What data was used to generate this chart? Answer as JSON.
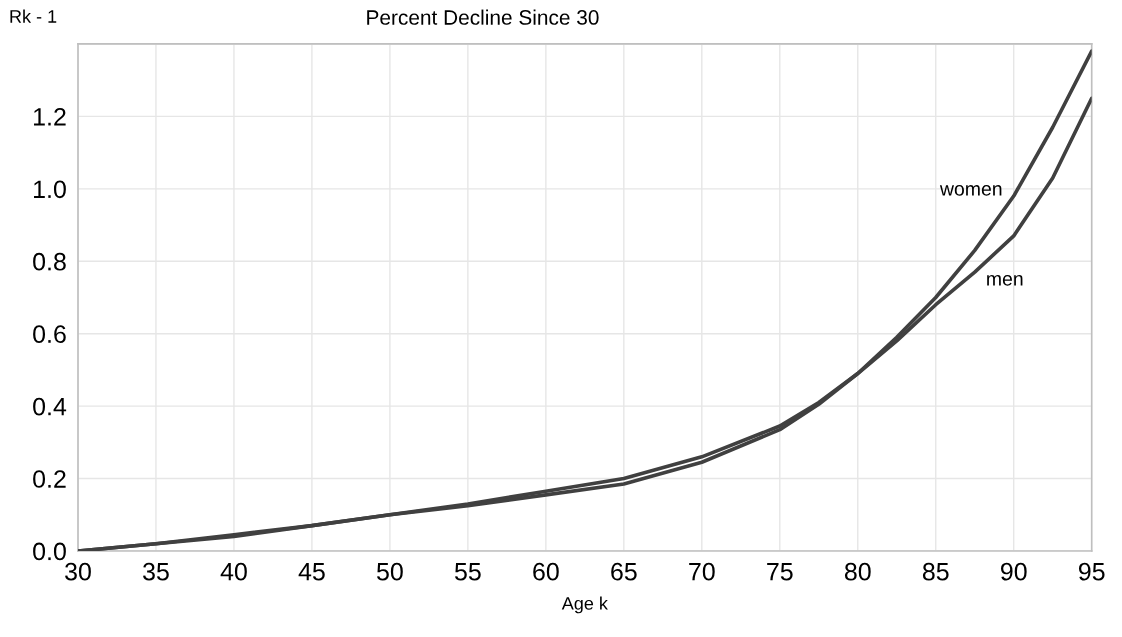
{
  "chart_data": {
    "type": "line",
    "title": "Percent Decline Since 30",
    "xlabel": "Age k",
    "ylabel": "Rk - 1",
    "x": [
      30,
      35,
      40,
      45,
      50,
      55,
      60,
      65,
      70,
      75,
      77.5,
      80,
      82.5,
      85,
      87.5,
      90,
      92.5,
      95
    ],
    "series": [
      {
        "name": "women",
        "color": "#404040",
        "values": [
          0,
          0.02,
          0.045,
          0.07,
          0.1,
          0.13,
          0.165,
          0.2,
          0.26,
          0.345,
          0.41,
          0.49,
          0.59,
          0.7,
          0.83,
          0.98,
          1.17,
          1.38
        ]
      },
      {
        "name": "men",
        "color": "#404040",
        "values": [
          0,
          0.02,
          0.04,
          0.07,
          0.1,
          0.125,
          0.155,
          0.185,
          0.245,
          0.335,
          0.405,
          0.49,
          0.58,
          0.68,
          0.77,
          0.87,
          1.03,
          1.25
        ]
      }
    ],
    "xlim": [
      30,
      95
    ],
    "xticks": [
      30,
      35,
      40,
      45,
      50,
      55,
      60,
      65,
      70,
      75,
      80,
      85,
      90,
      95
    ],
    "ylim": [
      0,
      1.4
    ],
    "yticks": [
      {
        "value": 0,
        "label": "0.0"
      },
      {
        "value": 0.2,
        "label": "0.2"
      },
      {
        "value": 0.4,
        "label": "0.4"
      },
      {
        "value": 0.6,
        "label": "0.6"
      },
      {
        "value": 0.8,
        "label": "0.8"
      },
      {
        "value": 1.0,
        "label": "1.0"
      },
      {
        "value": 1.2,
        "label": "1.2"
      },
      {
        "value": 1.4,
        "label": null
      }
    ],
    "grid": true,
    "legend": false,
    "marker": "none",
    "line_style": "solid"
  }
}
